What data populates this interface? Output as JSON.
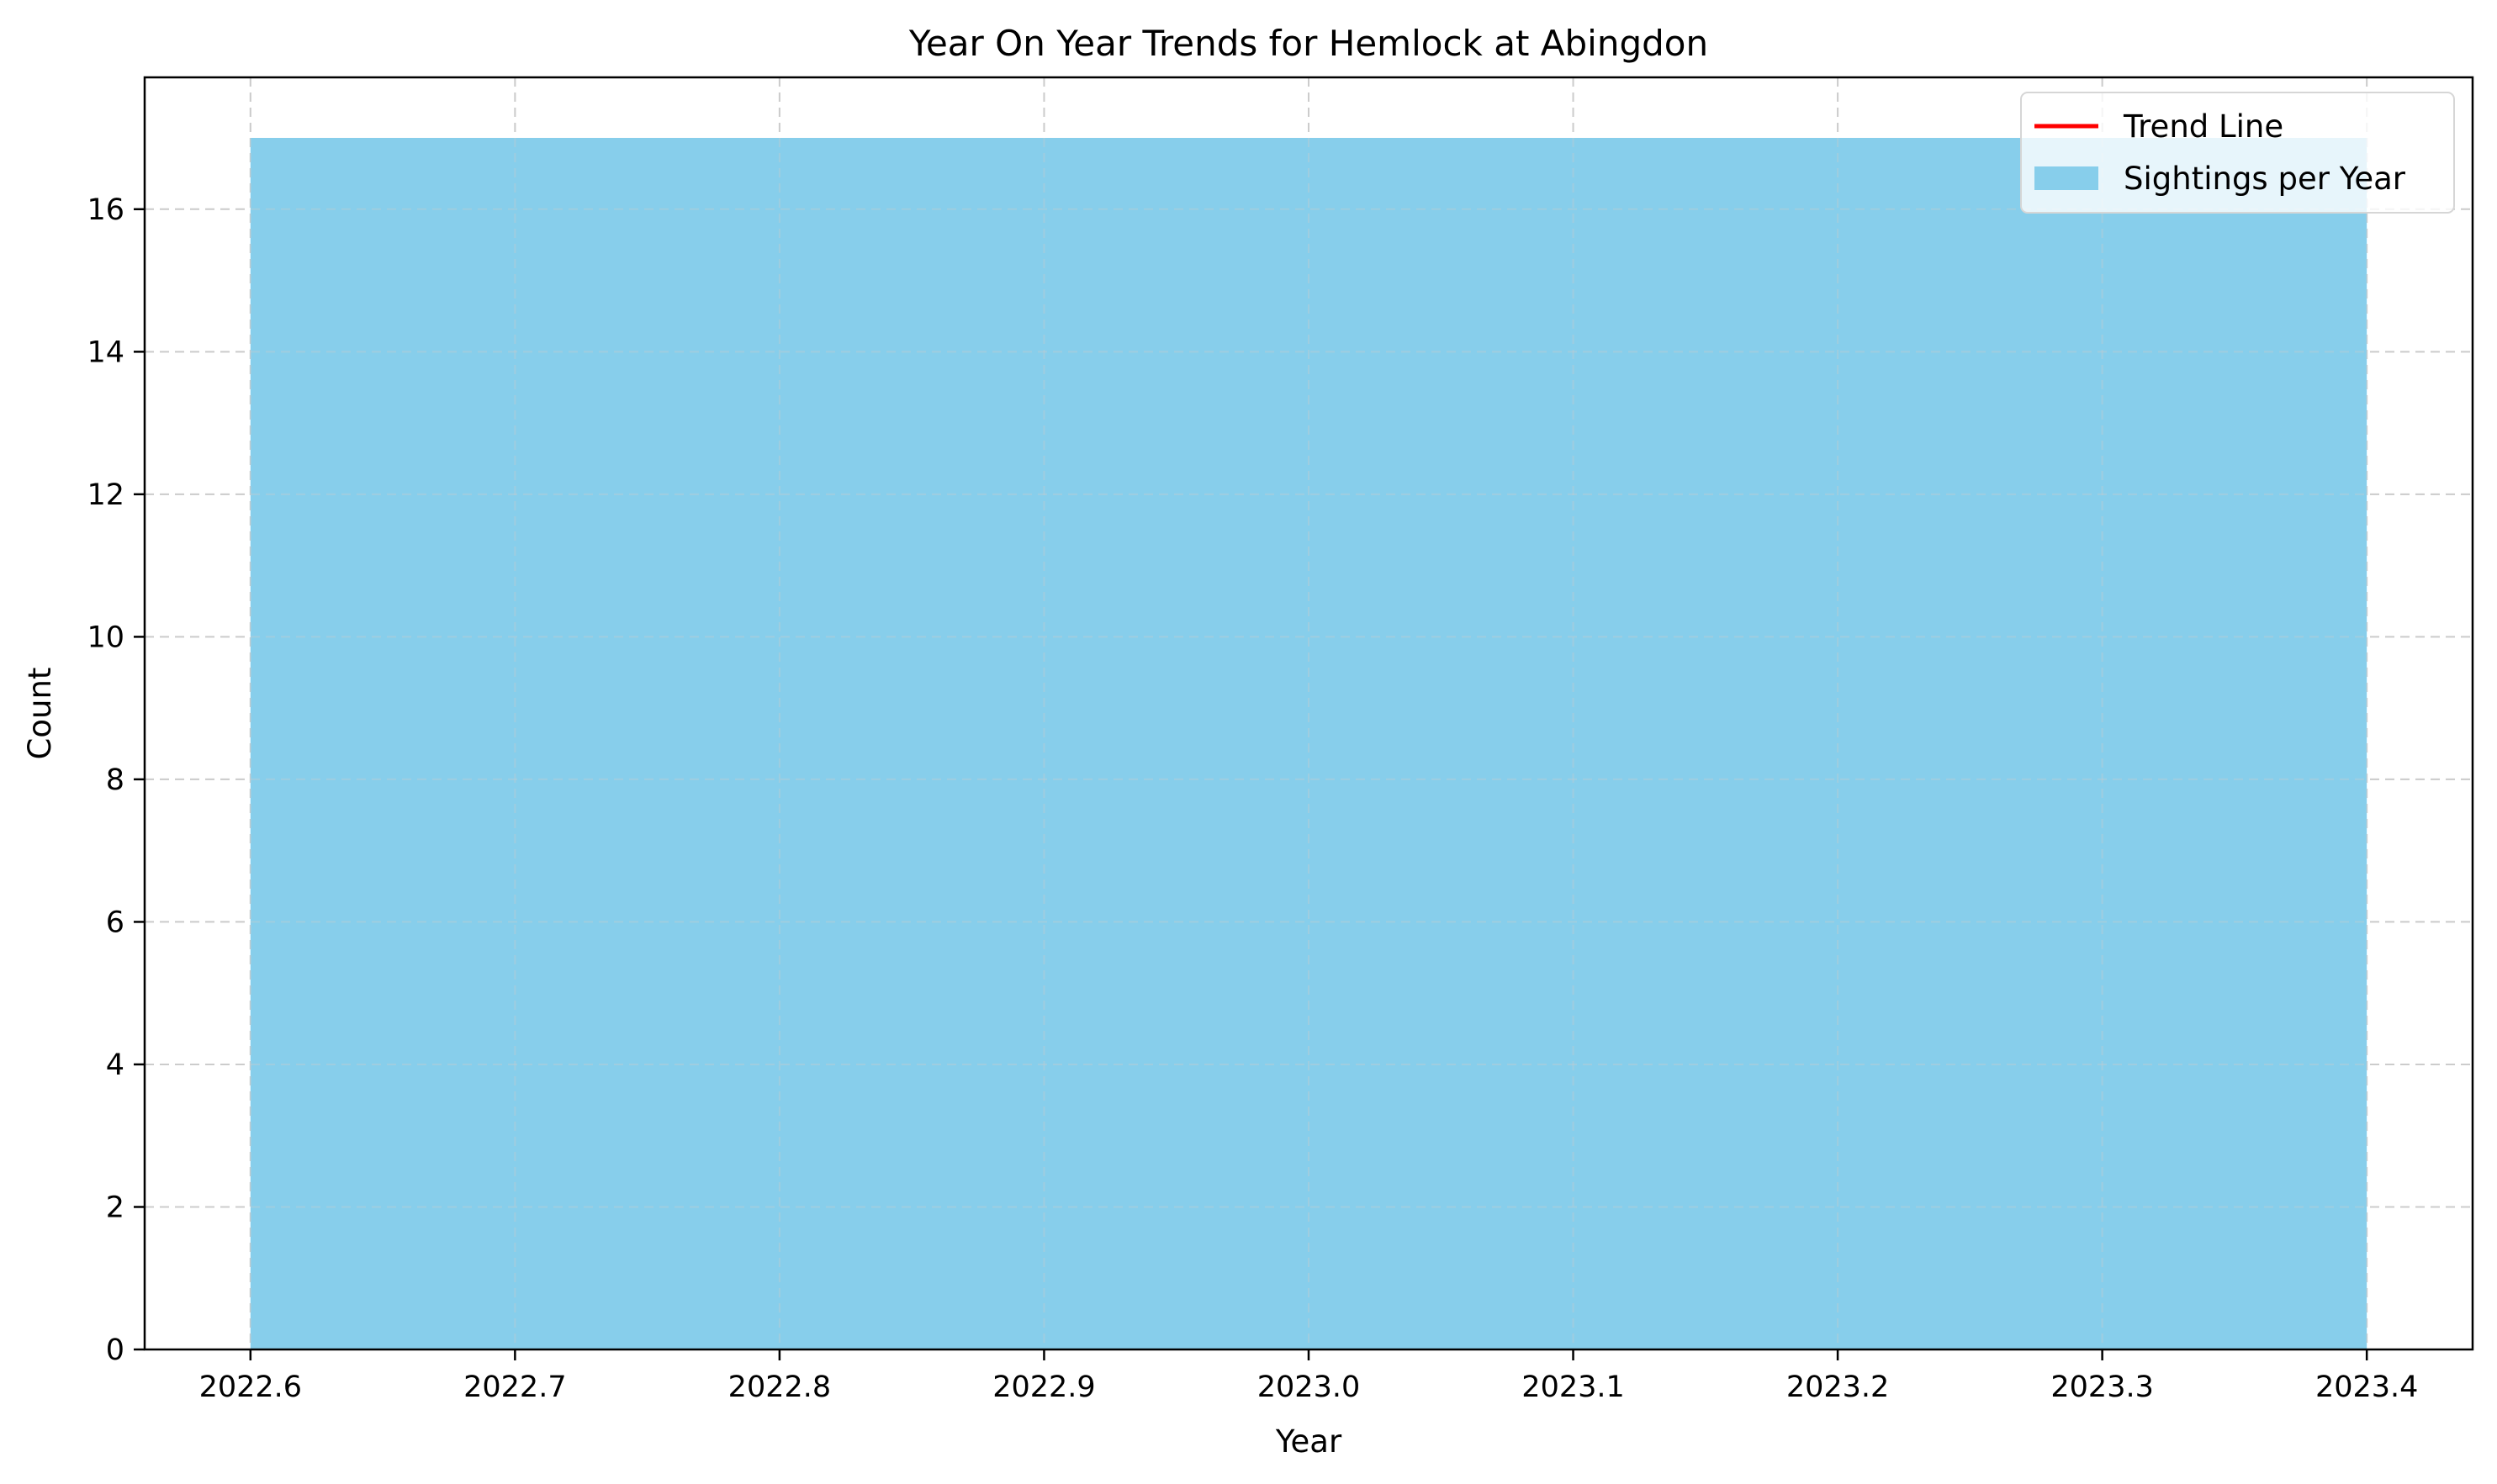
{
  "chart_data": {
    "type": "area",
    "title": "Year On Year Trends for Hemlock at Abingdon",
    "xlabel": "Year",
    "ylabel": "Count",
    "xlim": [
      2022.56,
      2023.44
    ],
    "ylim": [
      0,
      17.85
    ],
    "xticks": [
      2022.6,
      2022.7,
      2022.8,
      2022.9,
      2023.0,
      2023.1,
      2023.2,
      2023.3,
      2023.4
    ],
    "xtick_labels": [
      "2022.6",
      "2022.7",
      "2022.8",
      "2022.9",
      "2023.0",
      "2023.1",
      "2023.2",
      "2023.3",
      "2023.4"
    ],
    "yticks": [
      0,
      2,
      4,
      6,
      8,
      10,
      12,
      14,
      16
    ],
    "ytick_labels": [
      "0",
      "2",
      "4",
      "6",
      "8",
      "10",
      "12",
      "14",
      "16"
    ],
    "grid": true,
    "legend_position": "top-right",
    "series": [
      {
        "name": "Trend Line",
        "kind": "line",
        "color": "#ff0000",
        "x": [],
        "y": []
      },
      {
        "name": "Sightings per Year",
        "kind": "area",
        "color": "#87ceeb",
        "x": [
          2022.6,
          2023.4
        ],
        "y": [
          17,
          17
        ]
      }
    ]
  }
}
